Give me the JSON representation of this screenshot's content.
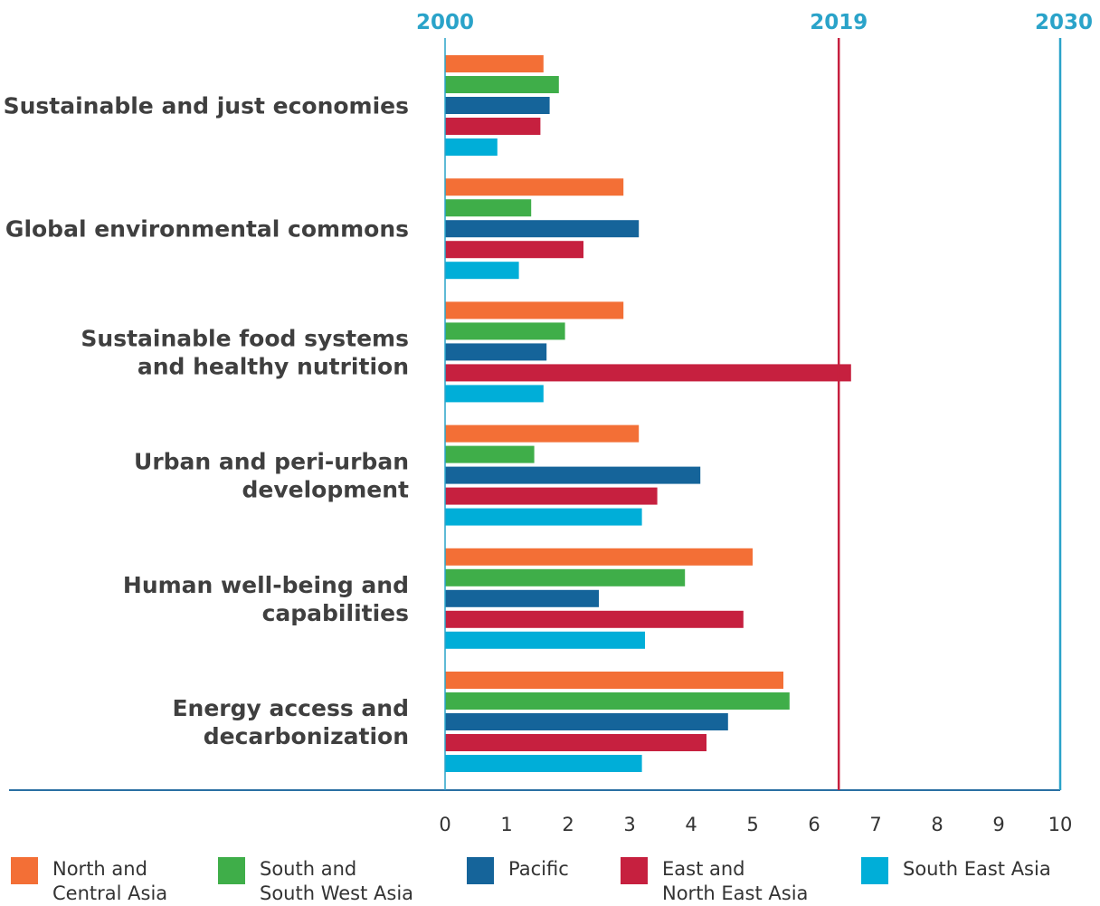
{
  "chart_data": {
    "type": "bar",
    "orientation": "horizontal",
    "xlim": [
      0,
      10
    ],
    "xticks": [
      "0",
      "1",
      "2",
      "3",
      "4",
      "5",
      "6",
      "7",
      "8",
      "9",
      "10"
    ],
    "top_markers": [
      {
        "label": "2000",
        "value": 0,
        "color": "#2aa3c9"
      },
      {
        "label": "2019",
        "value": 6.4,
        "color": "#c6203f"
      },
      {
        "label": "2030",
        "value": 10,
        "color": "#2aa3c9"
      }
    ],
    "categories": [
      [
        "Sustainable and just economies"
      ],
      [
        "Global environmental commons"
      ],
      [
        "Sustainable food systems",
        "and healthy nutrition"
      ],
      [
        "Urban and peri-urban",
        "development"
      ],
      [
        "Human well-being and",
        "capabilities"
      ],
      [
        "Energy access and",
        "decarbonization"
      ]
    ],
    "series": [
      {
        "name": [
          "North and",
          "Central Asia"
        ],
        "color": "#f36f36",
        "values": [
          1.6,
          2.9,
          2.9,
          3.15,
          5.0,
          5.5
        ]
      },
      {
        "name": [
          "South and",
          "South West Asia"
        ],
        "color": "#3fae49",
        "values": [
          1.85,
          1.4,
          1.95,
          1.45,
          3.9,
          5.6
        ]
      },
      {
        "name": [
          "Pacific"
        ],
        "color": "#15649a",
        "values": [
          1.7,
          3.15,
          1.65,
          4.15,
          2.5,
          4.6
        ]
      },
      {
        "name": [
          "East and",
          "North East Asia"
        ],
        "color": "#c6203f",
        "values": [
          1.55,
          2.25,
          6.6,
          3.45,
          4.85,
          4.25
        ]
      },
      {
        "name": [
          "South East Asia"
        ],
        "color": "#00aed8",
        "values": [
          0.85,
          1.2,
          1.6,
          3.2,
          3.25,
          3.2
        ]
      }
    ],
    "axis_color": "#2a6fa3",
    "grid": false,
    "legend_position": "bottom"
  }
}
